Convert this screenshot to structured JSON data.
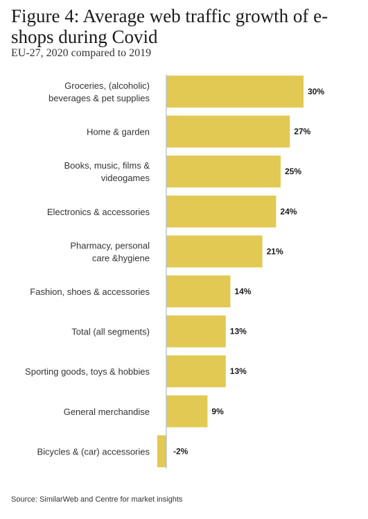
{
  "title": "Figure 4: Average web traffic growth of e-shops during Covid",
  "subtitle": "EU-27, 2020 compared to 2019",
  "source": "Source: SimilarWeb and Centre for market insights",
  "colors": {
    "bar": "#e2c954",
    "axis": "#a9bcd0"
  },
  "chart_data": {
    "type": "bar",
    "orientation": "horizontal",
    "title": "Figure 4: Average web traffic growth of e-shops during Covid",
    "subtitle": "EU-27, 2020 compared to 2019",
    "xlabel": "",
    "ylabel": "",
    "grid": false,
    "legend": "none",
    "unit": "%",
    "categories": [
      [
        "Groceries, (alcoholic)",
        "beverages & pet supplies"
      ],
      [
        "Home & garden"
      ],
      [
        "Books, music, films &",
        "videogames"
      ],
      [
        "Electronics & accessories"
      ],
      [
        "Pharmacy, personal",
        "care &hygiene"
      ],
      [
        "Fashion, shoes & accessories"
      ],
      [
        "Total (all segments)"
      ],
      [
        "Sporting goods, toys & hobbies"
      ],
      [
        "General merchandise"
      ],
      [
        "Bicycles & (car) accessories"
      ]
    ],
    "values": [
      30,
      27,
      25,
      24,
      21,
      14,
      13,
      13,
      9,
      -2
    ],
    "value_labels": [
      "30%",
      "27%",
      "25%",
      "24%",
      "21%",
      "14%",
      "13%",
      "13%",
      "9%",
      "-2%"
    ]
  }
}
